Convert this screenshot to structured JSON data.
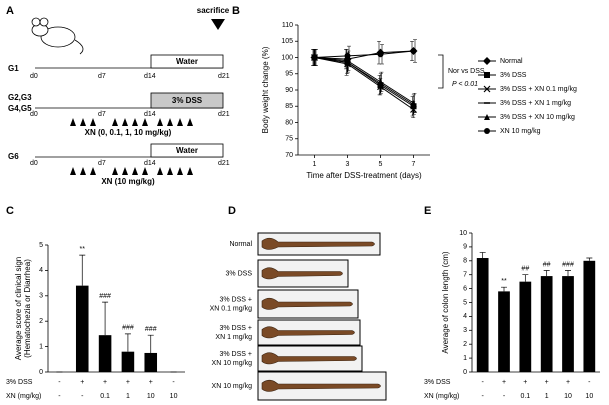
{
  "panel_labels": [
    "A",
    "B",
    "C",
    "D",
    "E"
  ],
  "schedule": {
    "sacrifice": "sacrifice",
    "groups": [
      {
        "label": [
          "G1"
        ],
        "box": "Water",
        "days": [
          "d0",
          "d7",
          "d14",
          "d21"
        ]
      },
      {
        "label": [
          "G2,G3",
          "G4,G5"
        ],
        "box": "3% DSS",
        "days": [
          "d0",
          "d7",
          "d14",
          "d21"
        ],
        "treatment": "XN (0, 0.1, 1, 10 mg/kg)"
      },
      {
        "label": [
          "G6"
        ],
        "box": "Water",
        "days": [
          "d0",
          "d7",
          "d14",
          "d21"
        ],
        "treatment": "XN (10 mg/kg)"
      }
    ]
  },
  "colons": {
    "labels": [
      [
        "Normal"
      ],
      [
        "3% DSS"
      ],
      [
        "3% DSS +",
        "XN 0.1 mg/kg"
      ],
      [
        "3% DSS +",
        "XN 1 mg/kg"
      ],
      [
        "3% DSS +",
        "XN 10 mg/kg"
      ],
      [
        "XN 10 mg/kg"
      ]
    ]
  },
  "chart_data": [
    {
      "type": "line",
      "x_label": "Time after DSS-treatment (days)",
      "y_label": "Body weight change (%)",
      "x": [
        1,
        3,
        5,
        7
      ],
      "xlim": [
        0,
        8
      ],
      "xticks": [
        1,
        3,
        5,
        7
      ],
      "ylim": [
        70,
        110
      ],
      "yticks": [
        70,
        75,
        80,
        85,
        90,
        95,
        100,
        105,
        110
      ],
      "annotation": [
        "Nor vs DSS,",
        "P < 0.01"
      ],
      "series": [
        {
          "name": "Normal",
          "color": "#000000",
          "marker": "diamond",
          "values": [
            100,
            99.5,
            101.5,
            102
          ],
          "errors": [
            2.5,
            3,
            3.5,
            3
          ]
        },
        {
          "name": "3% DSS",
          "color": "#000000",
          "marker": "square",
          "values": [
            100,
            98.5,
            91.5,
            85
          ],
          "errors": [
            2.5,
            4,
            3,
            3
          ]
        },
        {
          "name": "3% DSS + XN 0.1 mg/kg",
          "color": "#000000",
          "marker": "x",
          "values": [
            100,
            98,
            91,
            84
          ],
          "errors": [
            2.5,
            3,
            2.5,
            2.5
          ]
        },
        {
          "name": "3% DSS + XN 1 mg/kg",
          "color": "#000000",
          "marker": "dash",
          "values": [
            100,
            98.5,
            92,
            85.5
          ],
          "errors": [
            2.5,
            3,
            3,
            3
          ]
        },
        {
          "name": "3% DSS + XN 10 mg/kg",
          "color": "#000000",
          "marker": "triangle",
          "values": [
            100,
            99,
            92.5,
            86
          ],
          "errors": [
            2.5,
            3,
            3,
            3
          ]
        },
        {
          "name": "XN 10 mg/kg",
          "color": "#000000",
          "marker": "circle",
          "values": [
            100,
            100.5,
            101,
            102
          ],
          "errors": [
            2.5,
            3,
            3,
            3.5
          ]
        }
      ]
    },
    {
      "type": "bar",
      "y_label": [
        "Average score of clinical sign",
        "(Hematochezia or Diarrhea)"
      ],
      "values": [
        0,
        3.4,
        1.45,
        0.8,
        0.75,
        0
      ],
      "errors": [
        0,
        1.2,
        1.3,
        0.7,
        0.7,
        0
      ],
      "annotations": [
        null,
        "**",
        "###",
        "###",
        "###",
        null
      ],
      "color": "#000000",
      "ylim": [
        0,
        5
      ],
      "yticks": [
        0,
        1,
        2,
        3,
        4,
        5
      ],
      "table": [
        {
          "label": "3% DSS",
          "cells": [
            "-",
            "+",
            "+",
            "+",
            "+",
            "-"
          ]
        },
        {
          "label": "XN (mg/kg)",
          "cells": [
            "-",
            "-",
            "0.1",
            "1",
            "10",
            "10"
          ]
        }
      ]
    },
    {
      "type": "bar",
      "y_label": [
        "Average of colon length (cm)"
      ],
      "values": [
        8.2,
        5.8,
        6.5,
        6.9,
        6.9,
        8.0
      ],
      "errors": [
        0.4,
        0.3,
        0.5,
        0.4,
        0.4,
        0.2
      ],
      "annotations": [
        null,
        "**",
        "##",
        "##",
        "###",
        null
      ],
      "color": "#000000",
      "ylim": [
        0,
        10
      ],
      "yticks": [
        0,
        1,
        2,
        3,
        4,
        5,
        6,
        7,
        8,
        9,
        10
      ],
      "table": [
        {
          "label": "3% DSS",
          "cells": [
            "-",
            "+",
            "+",
            "+",
            "+",
            "-"
          ]
        },
        {
          "label": "XN (mg/kg)",
          "cells": [
            "-",
            "-",
            "0.1",
            "1",
            "10",
            "10"
          ]
        }
      ]
    }
  ]
}
